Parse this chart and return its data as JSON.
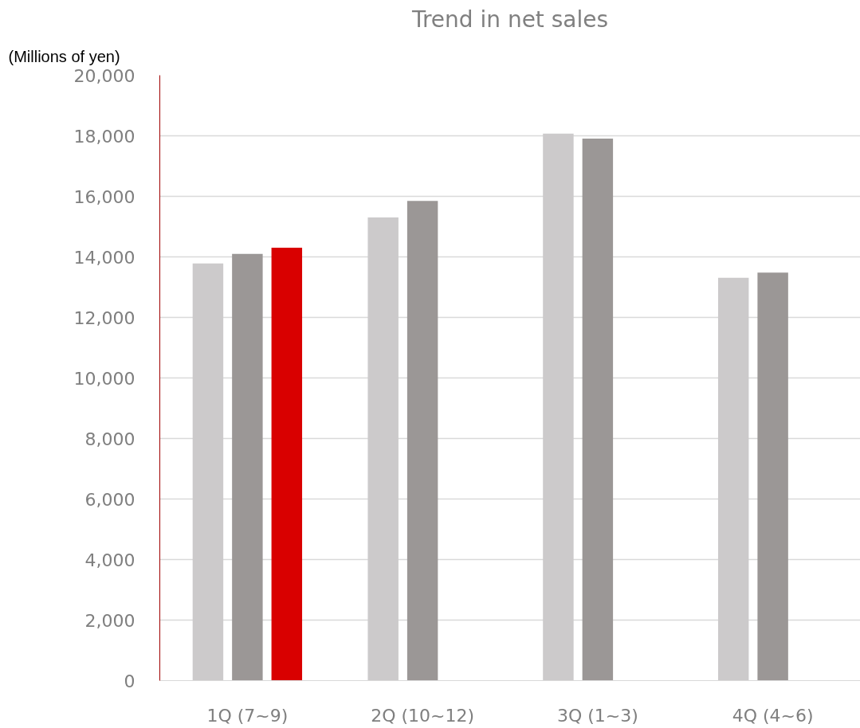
{
  "chart_data": {
    "type": "bar",
    "title": "Trend in net sales",
    "ylabel": "(Millions of yen)",
    "categories": [
      "1Q (7~9)",
      "2Q (10~12)",
      "3Q (1~3)",
      "4Q (4~6)"
    ],
    "series": [
      {
        "color": "#cccacb",
        "values": [
          13780,
          15300,
          18070,
          13310
        ]
      },
      {
        "color": "#9b9796",
        "values": [
          14100,
          15850,
          17910,
          13480
        ]
      },
      {
        "color": "#d90000",
        "values": [
          14300,
          null,
          null,
          null
        ]
      }
    ],
    "ylim": [
      0,
      20000
    ],
    "yticks": [
      {
        "value": 0,
        "label": "0"
      },
      {
        "value": 2000,
        "label": "2,000"
      },
      {
        "value": 4000,
        "label": "4,000"
      },
      {
        "value": 6000,
        "label": "6,000"
      },
      {
        "value": 8000,
        "label": "8,000"
      },
      {
        "value": 10000,
        "label": "10,000"
      },
      {
        "value": 12000,
        "label": "12,000"
      },
      {
        "value": 14000,
        "label": "14,000"
      },
      {
        "value": 16000,
        "label": "16,000"
      },
      {
        "value": 18000,
        "label": "18,000"
      },
      {
        "value": 20000,
        "label": "20,000"
      }
    ],
    "grid": "y"
  }
}
